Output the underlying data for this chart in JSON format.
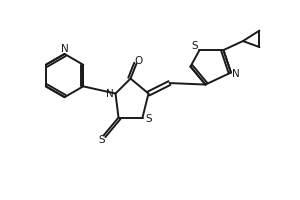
{
  "bg_color": "#ffffff",
  "line_color": "#1a1a1a",
  "line_width": 1.4,
  "font_size": 7.5,
  "xlim": [
    0,
    10
  ],
  "ylim": [
    0,
    6.67
  ]
}
